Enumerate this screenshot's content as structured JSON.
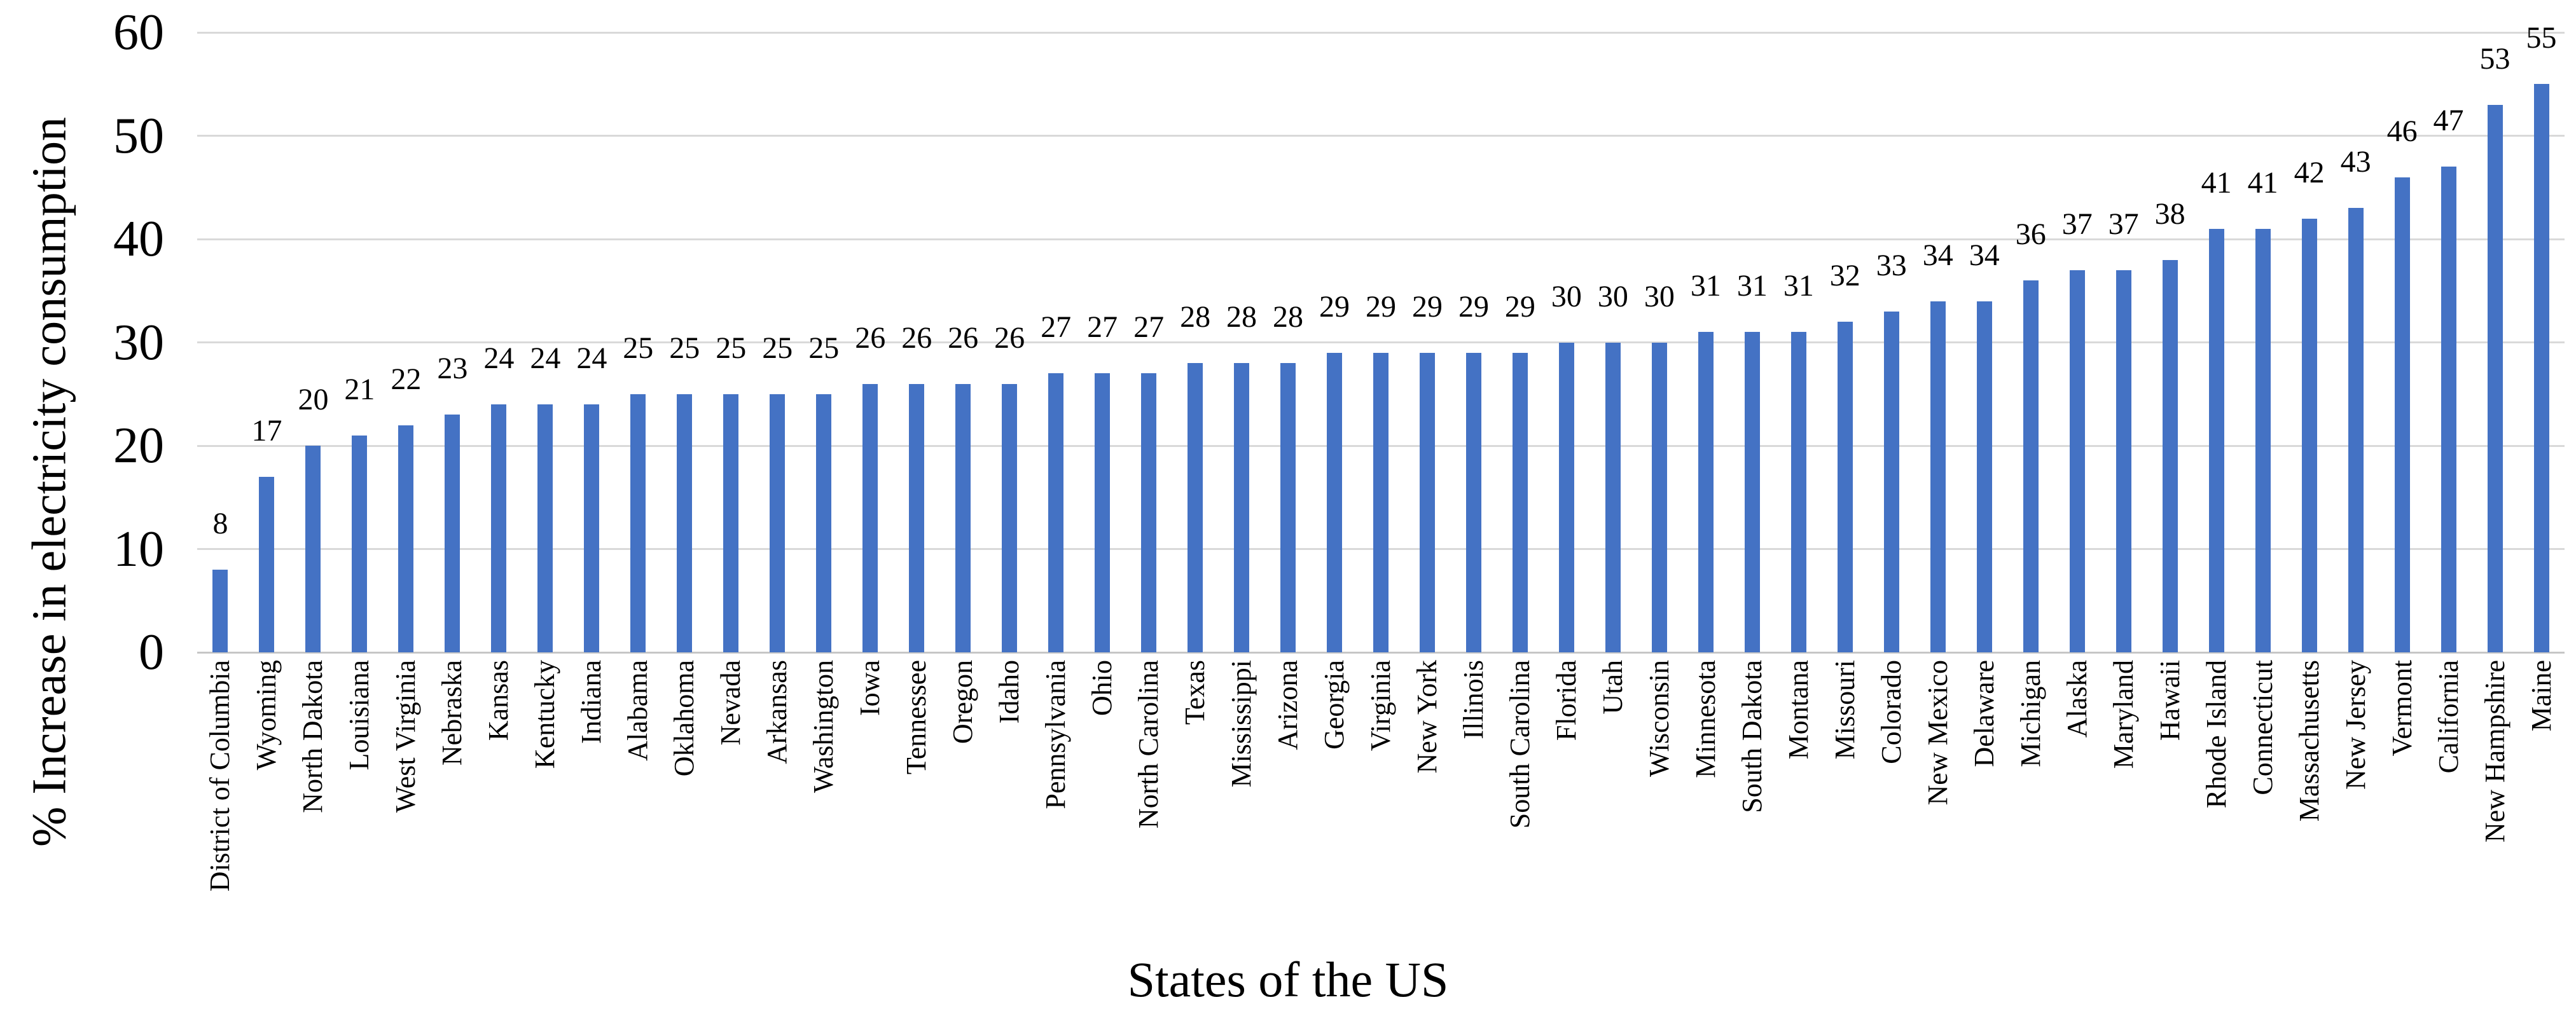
{
  "chart_data": {
    "type": "bar",
    "title": "",
    "xlabel": "States of the US",
    "ylabel": "% Increase in electricity consumption",
    "ylim": [
      0,
      60
    ],
    "yticks": [
      0,
      10,
      20,
      30,
      40,
      50,
      60
    ],
    "grid": "horizontal",
    "legend": "none",
    "data_labels": "outside-end",
    "bar_color": "#4472C4",
    "gridline_color": "#D9D9D9",
    "axis_line_color": "#C6C6C6",
    "text_color": "#000000",
    "categories": [
      "District of Columbia",
      "Wyoming",
      "North Dakota",
      "Louisiana",
      "West Virginia",
      "Nebraska",
      "Kansas",
      "Kentucky",
      "Indiana",
      "Alabama",
      "Oklahoma",
      "Nevada",
      "Arkansas",
      "Washington",
      "Iowa",
      "Tennessee",
      "Oregon",
      "Idaho",
      "Pennsylvania",
      "Ohio",
      "North Carolina",
      "Texas",
      "Mississippi",
      "Arizona",
      "Georgia",
      "Virginia",
      "New York",
      "Illinois",
      "South Carolina",
      "Florida",
      "Utah",
      "Wisconsin",
      "Minnesota",
      "South Dakota",
      "Montana",
      "Missouri",
      "Colorado",
      "New Mexico",
      "Delaware",
      "Michigan",
      "Alaska",
      "Maryland",
      "Hawaii",
      "Rhode Island",
      "Connecticut",
      "Massachusetts",
      "New Jersey",
      "Vermont",
      "California",
      "New Hampshire",
      "Maine"
    ],
    "values": [
      8,
      17,
      20,
      21,
      22,
      23,
      24,
      24,
      24,
      25,
      25,
      25,
      25,
      25,
      26,
      26,
      26,
      26,
      27,
      27,
      27,
      28,
      28,
      28,
      29,
      29,
      29,
      29,
      29,
      30,
      30,
      30,
      31,
      31,
      31,
      32,
      33,
      34,
      34,
      36,
      37,
      37,
      38,
      41,
      41,
      42,
      43,
      46,
      47,
      53,
      55
    ]
  }
}
